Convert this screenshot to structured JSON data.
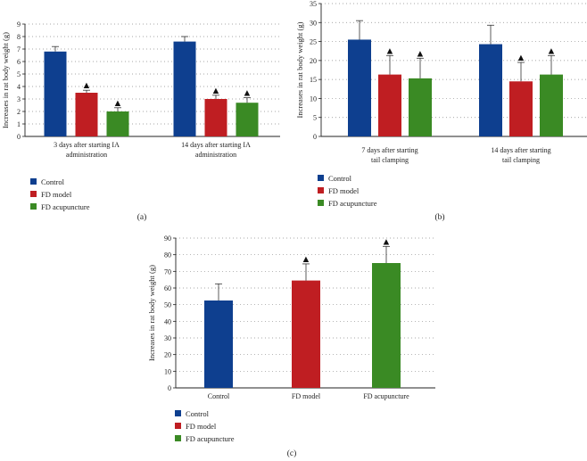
{
  "chart_data": [
    {
      "type": "bar",
      "panel": "(a)",
      "ylabel": "Increases in rat body weight (g)",
      "ylim": [
        0,
        9
      ],
      "yticks": [
        0,
        1,
        2,
        3,
        4,
        5,
        6,
        7,
        8,
        9
      ],
      "grid": true,
      "groups": [
        {
          "label_lines": [
            "3 days after starting IA",
            "administration"
          ]
        },
        {
          "label_lines": [
            "14 days after starting IA",
            "administration"
          ]
        }
      ],
      "series": [
        {
          "name": "Control",
          "color": "#0e3f8f",
          "values": [
            6.8,
            7.6
          ],
          "errors": [
            0.4,
            0.4
          ],
          "marked": [
            false,
            false
          ]
        },
        {
          "name": "FD model",
          "color": "#bf1e22",
          "values": [
            3.5,
            3.0
          ],
          "errors": [
            0.2,
            0.3
          ],
          "marked": [
            true,
            true
          ]
        },
        {
          "name": "FD acupuncture",
          "color": "#3a8a24",
          "values": [
            2.0,
            2.7
          ],
          "errors": [
            0.3,
            0.4
          ],
          "marked": [
            true,
            true
          ]
        }
      ],
      "marker": "▲",
      "legend_position": "bottom-left"
    },
    {
      "type": "bar",
      "panel": "(b)",
      "ylabel": "Increases in rat body weight (g)",
      "ylim": [
        0,
        35
      ],
      "yticks": [
        0,
        5,
        10,
        15,
        20,
        25,
        30,
        35
      ],
      "grid": true,
      "groups": [
        {
          "label_lines": [
            "7 days after starting",
            "tail clamping"
          ]
        },
        {
          "label_lines": [
            "14 days after starting",
            "tail clamping"
          ]
        }
      ],
      "series": [
        {
          "name": "Control",
          "color": "#0e3f8f",
          "values": [
            25.5,
            24.3
          ],
          "errors": [
            5.0,
            5.0
          ],
          "marked": [
            false,
            false
          ]
        },
        {
          "name": "FD model",
          "color": "#bf1e22",
          "values": [
            16.3,
            14.5
          ],
          "errors": [
            5.0,
            5.0
          ],
          "marked": [
            true,
            true
          ]
        },
        {
          "name": "FD acupuncture",
          "color": "#3a8a24",
          "values": [
            15.3,
            16.3
          ],
          "errors": [
            5.3,
            5.0
          ],
          "marked": [
            true,
            true
          ]
        }
      ],
      "marker": "▲",
      "legend_position": "bottom-left"
    },
    {
      "type": "bar",
      "panel": "(c)",
      "ylabel": "Increases in rat body weight (g)",
      "ylim": [
        0,
        90
      ],
      "yticks": [
        0,
        10,
        20,
        30,
        40,
        50,
        60,
        70,
        80,
        90
      ],
      "grid": true,
      "groups": [
        {
          "label_lines": [
            "Control"
          ]
        },
        {
          "label_lines": [
            "FD model"
          ]
        },
        {
          "label_lines": [
            "FD acupuncture"
          ]
        }
      ],
      "series": [
        {
          "name": "Control",
          "color": "#0e3f8f",
          "values": [
            52.5
          ],
          "errors": [
            10.0
          ],
          "marked": [
            false
          ],
          "group": 0
        },
        {
          "name": "FD model",
          "color": "#bf1e22",
          "values": [
            64.5
          ],
          "errors": [
            10.0
          ],
          "marked": [
            true
          ],
          "group": 1
        },
        {
          "name": "FD acupuncture",
          "color": "#3a8a24",
          "values": [
            75.0
          ],
          "errors": [
            10.0
          ],
          "marked": [
            true
          ],
          "group": 2
        }
      ],
      "marker": "▲",
      "legend_position": "bottom-left"
    }
  ]
}
